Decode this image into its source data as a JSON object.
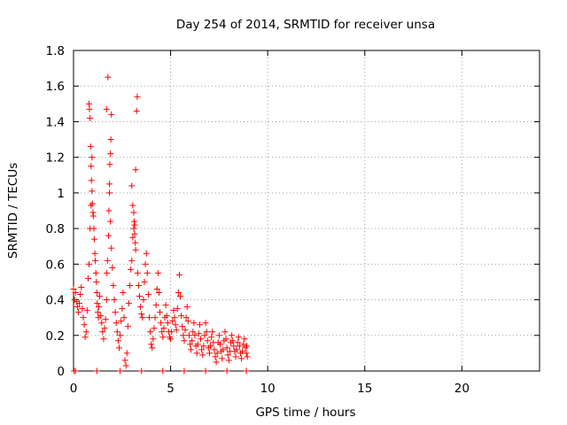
{
  "chart_data": {
    "type": "scatter",
    "title": "Day 254 of 2014, SRMTID for receiver unsa",
    "xlabel": "GPS time / hours",
    "ylabel": "SRMTID / TECUs",
    "xlim": [
      0,
      24
    ],
    "ylim": [
      0,
      1.8
    ],
    "x_ticks": [
      0,
      5,
      10,
      15,
      20
    ],
    "x_tick_labels": [
      "0",
      "5",
      "10",
      "15",
      "20"
    ],
    "y_ticks": [
      0,
      0.2,
      0.4,
      0.6,
      0.8,
      1,
      1.2,
      1.4,
      1.6,
      1.8
    ],
    "y_tick_labels": [
      "0",
      "0.2",
      "0.4",
      "0.6",
      "0.8",
      "1",
      "1.2",
      "1.4",
      "1.6",
      "1.8"
    ],
    "grid": true,
    "marker": "+",
    "color": "#ff0000",
    "series": [
      {
        "name": "SRMTID",
        "points": [
          [
            0.0,
            0.46
          ],
          [
            0.05,
            0.4
          ],
          [
            0.1,
            0.44
          ],
          [
            0.15,
            0.39
          ],
          [
            0.2,
            0.36
          ],
          [
            0.25,
            0.33
          ],
          [
            0.3,
            0.38
          ],
          [
            0.35,
            0.43
          ],
          [
            0.4,
            0.47
          ],
          [
            0.45,
            0.35
          ],
          [
            0.5,
            0.3
          ],
          [
            0.55,
            0.26
          ],
          [
            0.6,
            0.19
          ],
          [
            0.65,
            0.22
          ],
          [
            0.7,
            0.34
          ],
          [
            0.75,
            0.52
          ],
          [
            0.8,
            0.6
          ],
          [
            0.85,
            0.8
          ],
          [
            0.9,
            0.93
          ],
          [
            0.95,
            1.2
          ],
          [
            0.8,
            1.5
          ],
          [
            0.82,
            1.47
          ],
          [
            0.85,
            1.42
          ],
          [
            0.88,
            1.26
          ],
          [
            0.9,
            1.15
          ],
          [
            0.92,
            1.07
          ],
          [
            0.95,
            1.01
          ],
          [
            0.97,
            0.94
          ],
          [
            1.0,
            0.89
          ],
          [
            1.02,
            0.87
          ],
          [
            1.05,
            0.8
          ],
          [
            1.07,
            0.74
          ],
          [
            1.1,
            0.66
          ],
          [
            1.12,
            0.62
          ],
          [
            1.15,
            0.55
          ],
          [
            1.18,
            0.5
          ],
          [
            1.2,
            0.44
          ],
          [
            1.22,
            0.38
          ],
          [
            1.25,
            0.33
          ],
          [
            1.28,
            0.3
          ],
          [
            1.3,
            0.36
          ],
          [
            1.35,
            0.42
          ],
          [
            1.4,
            0.31
          ],
          [
            1.45,
            0.27
          ],
          [
            1.5,
            0.22
          ],
          [
            1.55,
            0.18
          ],
          [
            1.6,
            0.24
          ],
          [
            1.65,
            0.29
          ],
          [
            1.7,
            0.4
          ],
          [
            1.72,
            0.55
          ],
          [
            1.75,
            0.62
          ],
          [
            1.8,
            0.76
          ],
          [
            1.82,
            0.9
          ],
          [
            1.85,
            1.0
          ],
          [
            1.87,
            1.16
          ],
          [
            1.9,
            1.22
          ],
          [
            1.92,
            1.3
          ],
          [
            1.95,
            1.44
          ],
          [
            1.7,
            1.47
          ],
          [
            1.77,
            1.65
          ],
          [
            1.85,
            1.05
          ],
          [
            1.9,
            0.84
          ],
          [
            1.95,
            0.69
          ],
          [
            2.0,
            0.58
          ],
          [
            2.05,
            0.48
          ],
          [
            2.1,
            0.4
          ],
          [
            2.15,
            0.33
          ],
          [
            2.2,
            0.27
          ],
          [
            2.25,
            0.22
          ],
          [
            2.3,
            0.17
          ],
          [
            2.35,
            0.13
          ],
          [
            2.4,
            0.2
          ],
          [
            2.45,
            0.28
          ],
          [
            2.5,
            0.35
          ],
          [
            2.55,
            0.44
          ],
          [
            2.6,
            0.3
          ],
          [
            2.65,
            0.06
          ],
          [
            2.7,
            0.03
          ],
          [
            2.75,
            0.1
          ],
          [
            2.8,
            0.25
          ],
          [
            2.85,
            0.38
          ],
          [
            2.9,
            0.48
          ],
          [
            2.95,
            0.57
          ],
          [
            3.0,
            0.62
          ],
          [
            3.05,
            0.75
          ],
          [
            3.1,
            0.8
          ],
          [
            3.12,
            0.84
          ],
          [
            3.15,
            0.77
          ],
          [
            3.18,
            0.72
          ],
          [
            3.2,
            0.68
          ],
          [
            3.0,
            1.04
          ],
          [
            3.05,
            0.93
          ],
          [
            3.1,
            0.89
          ],
          [
            3.15,
            0.82
          ],
          [
            3.2,
            1.13
          ],
          [
            3.25,
            1.46
          ],
          [
            3.28,
            1.54
          ],
          [
            3.3,
            0.55
          ],
          [
            3.35,
            0.48
          ],
          [
            3.4,
            0.42
          ],
          [
            3.45,
            0.36
          ],
          [
            3.5,
            0.32
          ],
          [
            3.55,
            0.3
          ],
          [
            3.6,
            0.4
          ],
          [
            3.65,
            0.5
          ],
          [
            3.7,
            0.6
          ],
          [
            3.75,
            0.66
          ],
          [
            3.8,
            0.55
          ],
          [
            3.85,
            0.43
          ],
          [
            3.9,
            0.3
          ],
          [
            3.95,
            0.22
          ],
          [
            4.0,
            0.15
          ],
          [
            4.05,
            0.13
          ],
          [
            4.1,
            0.18
          ],
          [
            4.15,
            0.24
          ],
          [
            4.2,
            0.3
          ],
          [
            4.25,
            0.37
          ],
          [
            4.3,
            0.46
          ],
          [
            4.35,
            0.55
          ],
          [
            4.4,
            0.44
          ],
          [
            4.45,
            0.33
          ],
          [
            4.5,
            0.27
          ],
          [
            4.55,
            0.22
          ],
          [
            4.6,
            0.19
          ],
          [
            4.65,
            0.24
          ],
          [
            4.7,
            0.3
          ],
          [
            4.75,
            0.37
          ],
          [
            4.8,
            0.31
          ],
          [
            4.85,
            0.27
          ],
          [
            4.9,
            0.22
          ],
          [
            4.95,
            0.19
          ],
          [
            5.0,
            0.18
          ],
          [
            5.05,
            0.22
          ],
          [
            5.1,
            0.28
          ],
          [
            5.15,
            0.34
          ],
          [
            5.2,
            0.3
          ],
          [
            5.25,
            0.26
          ],
          [
            5.3,
            0.23
          ],
          [
            5.35,
            0.35
          ],
          [
            5.4,
            0.44
          ],
          [
            5.45,
            0.54
          ],
          [
            5.5,
            0.42
          ],
          [
            5.55,
            0.31
          ],
          [
            5.6,
            0.25
          ],
          [
            5.65,
            0.2
          ],
          [
            5.7,
            0.17
          ],
          [
            5.75,
            0.23
          ],
          [
            5.8,
            0.3
          ],
          [
            5.85,
            0.36
          ],
          [
            5.9,
            0.28
          ],
          [
            5.95,
            0.2
          ],
          [
            6.0,
            0.15
          ],
          [
            6.05,
            0.12
          ],
          [
            6.1,
            0.17
          ],
          [
            6.15,
            0.22
          ],
          [
            6.2,
            0.27
          ],
          [
            6.25,
            0.2
          ],
          [
            6.3,
            0.14
          ],
          [
            6.35,
            0.1
          ],
          [
            6.4,
            0.15
          ],
          [
            6.45,
            0.21
          ],
          [
            6.5,
            0.26
          ],
          [
            6.55,
            0.18
          ],
          [
            6.6,
            0.12
          ],
          [
            6.65,
            0.09
          ],
          [
            6.7,
            0.14
          ],
          [
            6.75,
            0.2
          ],
          [
            6.8,
            0.27
          ],
          [
            6.85,
            0.22
          ],
          [
            6.9,
            0.17
          ],
          [
            6.95,
            0.13
          ],
          [
            7.0,
            0.1
          ],
          [
            7.05,
            0.14
          ],
          [
            7.1,
            0.19
          ],
          [
            7.15,
            0.22
          ],
          [
            7.2,
            0.16
          ],
          [
            7.25,
            0.12
          ],
          [
            7.3,
            0.08
          ],
          [
            7.35,
            0.05
          ],
          [
            7.4,
            0.1
          ],
          [
            7.45,
            0.16
          ],
          [
            7.5,
            0.2
          ],
          [
            7.55,
            0.15
          ],
          [
            7.6,
            0.11
          ],
          [
            7.65,
            0.07
          ],
          [
            7.7,
            0.12
          ],
          [
            7.75,
            0.17
          ],
          [
            7.8,
            0.22
          ],
          [
            7.85,
            0.18
          ],
          [
            7.9,
            0.13
          ],
          [
            7.95,
            0.09
          ],
          [
            8.0,
            0.06
          ],
          [
            8.05,
            0.11
          ],
          [
            8.1,
            0.16
          ],
          [
            8.15,
            0.2
          ],
          [
            8.2,
            0.17
          ],
          [
            8.25,
            0.14
          ],
          [
            8.3,
            0.11
          ],
          [
            8.35,
            0.08
          ],
          [
            8.4,
            0.12
          ],
          [
            8.45,
            0.16
          ],
          [
            8.5,
            0.19
          ],
          [
            8.55,
            0.14
          ],
          [
            8.6,
            0.1
          ],
          [
            8.65,
            0.07
          ],
          [
            8.7,
            0.11
          ],
          [
            8.75,
            0.15
          ],
          [
            8.8,
            0.18
          ],
          [
            8.85,
            0.13
          ],
          [
            8.9,
            0.1
          ],
          [
            8.92,
            0.14
          ],
          [
            8.95,
            0.08
          ],
          [
            0.03,
            0.0
          ],
          [
            0.1,
            0.0
          ],
          [
            1.2,
            0.0
          ],
          [
            2.4,
            0.0
          ],
          [
            3.5,
            0.0
          ],
          [
            4.6,
            0.0
          ],
          [
            5.7,
            0.0
          ],
          [
            6.8,
            0.0
          ],
          [
            7.9,
            0.0
          ],
          [
            8.9,
            0.0
          ]
        ]
      }
    ]
  }
}
